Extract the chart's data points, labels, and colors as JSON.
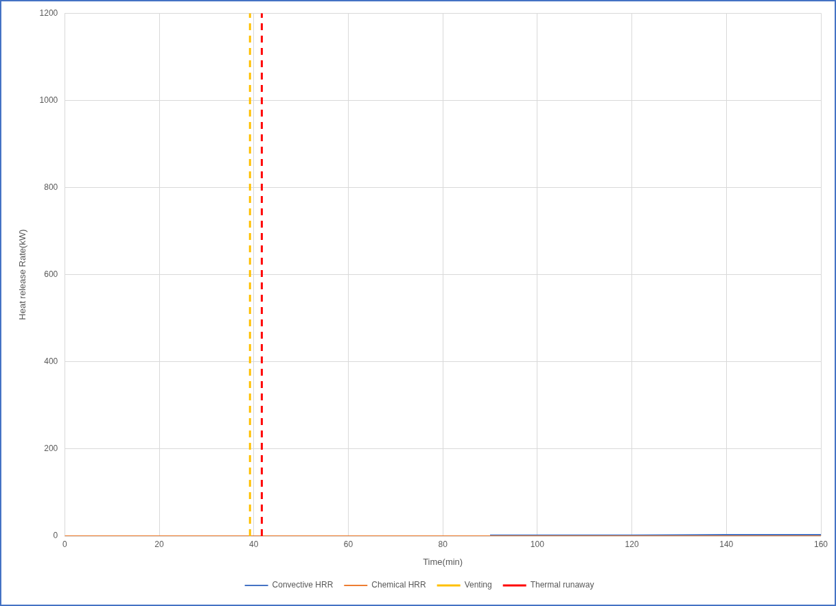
{
  "chart_data": {
    "type": "line",
    "xlabel": "Time(min)",
    "ylabel": "Heat release Rate(kW)",
    "xlim": [
      0,
      160
    ],
    "xticks": [
      0,
      20,
      40,
      60,
      80,
      100,
      120,
      140,
      160
    ],
    "ylim": [
      0,
      1200
    ],
    "yticks": [
      0,
      200,
      400,
      600,
      800,
      1000,
      1200
    ],
    "grid": true,
    "legend": "bottom",
    "marker": "none",
    "series": [
      {
        "name": "Convective HRR",
        "color": "#4472c4",
        "x": [
          90,
          100,
          120,
          140,
          160
        ],
        "values": [
          2,
          2,
          2,
          3,
          3
        ]
      },
      {
        "name": "Chemical HRR",
        "color": "#ed7d31",
        "x": [
          0,
          20,
          40,
          60,
          80,
          100,
          120,
          140,
          160
        ],
        "values": [
          0,
          0,
          0,
          0,
          0,
          0,
          0,
          0,
          0
        ]
      },
      {
        "name": "Venting",
        "color": "#ffc000",
        "line_style": "dashed",
        "x": [
          39.2,
          39.2
        ],
        "values": [
          0,
          1200
        ]
      },
      {
        "name": "Thermal runaway",
        "color": "#ff0000",
        "line_style": "dashed",
        "x": [
          41.7,
          41.7
        ],
        "values": [
          0,
          1200
        ]
      }
    ]
  }
}
